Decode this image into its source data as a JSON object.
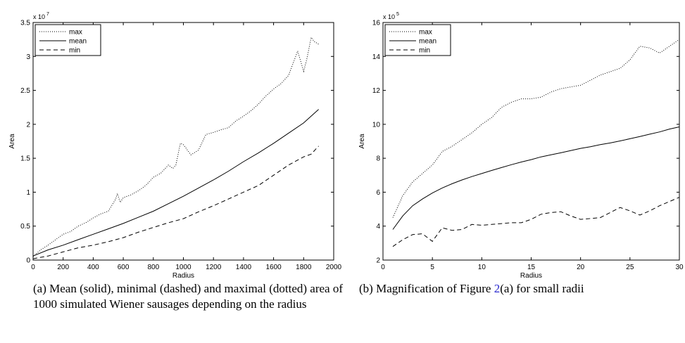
{
  "chart_data": [
    {
      "type": "line",
      "id": "a",
      "xlabel": "Radius",
      "ylabel": "Area",
      "exponent_label": "x 10",
      "exponent_power": "7",
      "scale": 10000000,
      "xlim": [
        0,
        2000
      ],
      "ylim": [
        0,
        3.5
      ],
      "xticks": [
        0,
        200,
        400,
        600,
        800,
        1000,
        1200,
        1400,
        1600,
        1800,
        2000
      ],
      "yticks": [
        0,
        0.5,
        1,
        1.5,
        2,
        2.5,
        3,
        3.5
      ],
      "ytick_labels": [
        "0",
        "0.5",
        "1",
        "1.5",
        "2",
        "2.5",
        "3",
        "3.5"
      ],
      "grid": false,
      "legend_position": "top-left",
      "series": [
        {
          "name": "max",
          "style": "dotted",
          "x": [
            0,
            50,
            100,
            150,
            200,
            250,
            300,
            350,
            400,
            450,
            500,
            550,
            560,
            580,
            600,
            650,
            700,
            750,
            800,
            850,
            900,
            930,
            950,
            980,
            1000,
            1050,
            1100,
            1150,
            1200,
            1250,
            1300,
            1350,
            1400,
            1450,
            1500,
            1550,
            1600,
            1650,
            1700,
            1730,
            1760,
            1800,
            1820,
            1850,
            1870,
            1900
          ],
          "y": [
            0.05,
            0.15,
            0.22,
            0.3,
            0.38,
            0.42,
            0.5,
            0.55,
            0.62,
            0.68,
            0.72,
            0.9,
            0.98,
            0.85,
            0.92,
            0.96,
            1.02,
            1.1,
            1.22,
            1.28,
            1.4,
            1.35,
            1.4,
            1.72,
            1.7,
            1.55,
            1.62,
            1.85,
            1.88,
            1.92,
            1.95,
            2.05,
            2.12,
            2.2,
            2.3,
            2.42,
            2.52,
            2.6,
            2.72,
            2.9,
            3.08,
            2.78,
            2.95,
            3.28,
            3.22,
            3.18
          ]
        },
        {
          "name": "mean",
          "style": "solid",
          "x": [
            0,
            100,
            200,
            300,
            400,
            500,
            600,
            700,
            800,
            900,
            1000,
            1100,
            1200,
            1300,
            1400,
            1500,
            1600,
            1700,
            1800,
            1900
          ],
          "y": [
            0.06,
            0.15,
            0.22,
            0.3,
            0.38,
            0.46,
            0.54,
            0.63,
            0.72,
            0.83,
            0.94,
            1.06,
            1.18,
            1.31,
            1.45,
            1.58,
            1.72,
            1.87,
            2.02,
            2.22
          ]
        },
        {
          "name": "min",
          "style": "dashed",
          "x": [
            0,
            100,
            200,
            300,
            400,
            500,
            600,
            700,
            800,
            900,
            1000,
            1100,
            1200,
            1300,
            1400,
            1500,
            1600,
            1700,
            1800,
            1850,
            1900
          ],
          "y": [
            0.02,
            0.06,
            0.12,
            0.18,
            0.22,
            0.27,
            0.33,
            0.41,
            0.48,
            0.55,
            0.61,
            0.71,
            0.8,
            0.9,
            1.0,
            1.1,
            1.25,
            1.4,
            1.52,
            1.56,
            1.68
          ]
        }
      ]
    },
    {
      "type": "line",
      "id": "b",
      "xlabel": "Radius",
      "ylabel": "Area",
      "exponent_label": "x 10",
      "exponent_power": "5",
      "scale": 100000,
      "xlim": [
        0,
        30
      ],
      "ylim": [
        2,
        16
      ],
      "xticks": [
        0,
        5,
        10,
        15,
        20,
        25,
        30
      ],
      "yticks": [
        2,
        4,
        6,
        8,
        10,
        12,
        14,
        16
      ],
      "ytick_labels": [
        "2",
        "4",
        "6",
        "8",
        "10",
        "12",
        "14",
        "16"
      ],
      "grid": false,
      "legend_position": "top-left",
      "series": [
        {
          "name": "max",
          "style": "dotted",
          "x": [
            1,
            2,
            3,
            4,
            5,
            6,
            7,
            8,
            9,
            10,
            11,
            12,
            13,
            14,
            15,
            16,
            17,
            18,
            19,
            20,
            21,
            22,
            23,
            24,
            25,
            26,
            27,
            28,
            29,
            30
          ],
          "y": [
            4.5,
            5.8,
            6.6,
            7.1,
            7.6,
            8.4,
            8.7,
            9.1,
            9.5,
            10.0,
            10.4,
            11.0,
            11.3,
            11.5,
            11.5,
            11.6,
            11.9,
            12.1,
            12.2,
            12.3,
            12.6,
            12.9,
            13.1,
            13.3,
            13.8,
            14.6,
            14.5,
            14.2,
            14.6,
            15.0
          ]
        },
        {
          "name": "mean",
          "style": "solid",
          "x": [
            1,
            2,
            3,
            4,
            5,
            6,
            7,
            8,
            9,
            10,
            11,
            12,
            13,
            14,
            15,
            16,
            17,
            18,
            19,
            20,
            21,
            22,
            23,
            24,
            25,
            26,
            27,
            28,
            29,
            30
          ],
          "y": [
            3.8,
            4.6,
            5.2,
            5.6,
            5.95,
            6.25,
            6.5,
            6.72,
            6.92,
            7.1,
            7.28,
            7.45,
            7.62,
            7.78,
            7.92,
            8.08,
            8.2,
            8.32,
            8.45,
            8.58,
            8.68,
            8.8,
            8.9,
            9.02,
            9.15,
            9.28,
            9.42,
            9.55,
            9.72,
            9.85
          ]
        },
        {
          "name": "min",
          "style": "dashed",
          "x": [
            1,
            2,
            3,
            4,
            5,
            6,
            7,
            8,
            9,
            10,
            11,
            12,
            13,
            14,
            15,
            16,
            17,
            18,
            19,
            20,
            21,
            22,
            23,
            24,
            25,
            26,
            27,
            28,
            29,
            30
          ],
          "y": [
            2.8,
            3.2,
            3.5,
            3.55,
            3.1,
            3.9,
            3.75,
            3.8,
            4.1,
            4.05,
            4.1,
            4.15,
            4.2,
            4.2,
            4.4,
            4.7,
            4.8,
            4.85,
            4.6,
            4.4,
            4.45,
            4.5,
            4.8,
            5.1,
            4.9,
            4.65,
            4.9,
            5.2,
            5.45,
            5.7
          ]
        }
      ]
    }
  ],
  "captions": {
    "a": "(a) Mean (solid), minimal (dashed) and maximal (dotted) area of 1000 simulated Wiener sausages depending on the radius",
    "b_prefix": "(b) Magnification of Figure ",
    "b_ref": "2",
    "b_suffix": "(a) for small radii"
  }
}
